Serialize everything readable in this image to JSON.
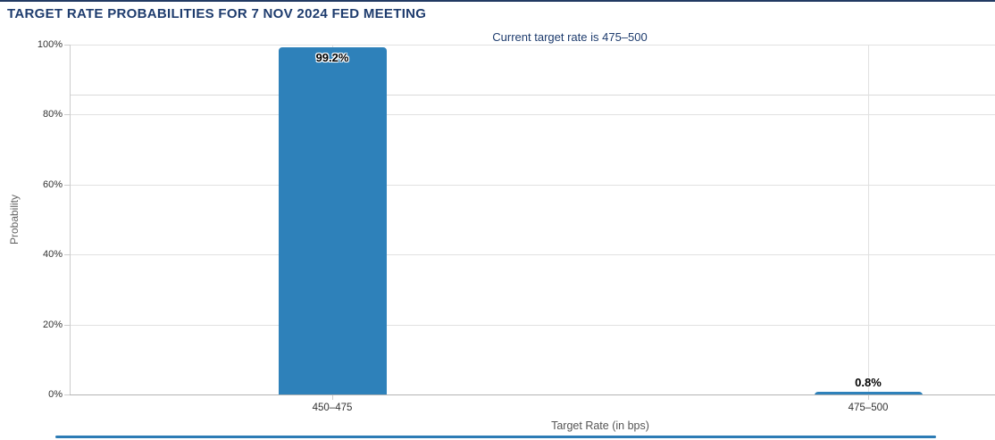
{
  "colors": {
    "top_border_navy": "#223a63",
    "title_navy": "#1e3c6e",
    "bar_blue": "#2e81ba",
    "bottom_line_blue": "#2d7cb5"
  },
  "chart_data": {
    "type": "bar",
    "title": "TARGET RATE PROBABILITIES FOR 7 NOV 2024 FED MEETING",
    "subtitle": "Current target rate is 475–500",
    "categories": [
      "450–475",
      "475–500"
    ],
    "values": [
      99.2,
      0.8
    ],
    "value_labels": [
      "99.2%",
      "0.8%"
    ],
    "xlabel": "Target Rate (in bps)",
    "ylabel": "Probability",
    "ylim": [
      0,
      100
    ],
    "yticks": [
      0,
      20,
      40,
      60,
      80,
      100
    ],
    "ytick_labels": [
      "0%",
      "20%",
      "40%",
      "60%",
      "80%",
      "100%"
    ],
    "grid": true,
    "legend": "none",
    "unlabeled_hline_value": 85.7,
    "bar_color": "#2e81ba"
  }
}
